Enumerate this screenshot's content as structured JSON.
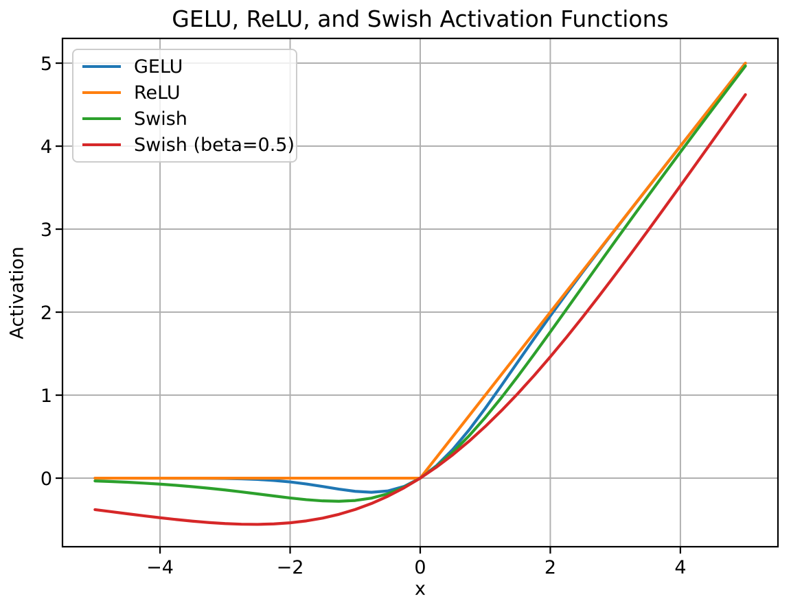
{
  "chart_data": {
    "type": "line",
    "title": "GELU, ReLU, and Swish Activation Functions",
    "xlabel": "x",
    "ylabel": "Activation",
    "xlim": [
      -5.5,
      5.5
    ],
    "ylim": [
      -0.826,
      5.298
    ],
    "grid": true,
    "grid_color": "#b0b0b0",
    "background": "#ffffff",
    "legend_position": "upper-left",
    "xticks": {
      "values": [
        -4,
        -2,
        0,
        2,
        4
      ],
      "labels": [
        "−4",
        "−2",
        "0",
        "2",
        "4"
      ]
    },
    "yticks": {
      "values": [
        0,
        1,
        2,
        3,
        4,
        5
      ],
      "labels": [
        "0",
        "1",
        "2",
        "3",
        "4",
        "5"
      ]
    },
    "x": [
      -5,
      -4.75,
      -4.5,
      -4.25,
      -4,
      -3.75,
      -3.5,
      -3.25,
      -3,
      -2.75,
      -2.5,
      -2.25,
      -2,
      -1.75,
      -1.5,
      -1.25,
      -1,
      -0.75,
      -0.5,
      -0.25,
      0,
      0.25,
      0.5,
      0.75,
      1,
      1.25,
      1.5,
      1.75,
      2,
      2.25,
      2.5,
      2.75,
      3,
      3.25,
      3.5,
      3.75,
      4,
      4.25,
      4.5,
      4.75,
      5
    ],
    "series": [
      {
        "name": "GELU",
        "color": "#1f77b4",
        "values": [
          0,
          0,
          0,
          0,
          -0.0001,
          -0.0003,
          -0.0008,
          -0.0019,
          -0.004,
          -0.0082,
          -0.0155,
          -0.0275,
          -0.0455,
          -0.0701,
          -0.1002,
          -0.1321,
          -0.1587,
          -0.17,
          -0.1543,
          -0.1003,
          0,
          0.1497,
          0.3457,
          0.58,
          0.8413,
          1.1179,
          1.3998,
          1.6799,
          1.9545,
          2.2225,
          2.4845,
          2.7418,
          2.996,
          3.2481,
          3.4992,
          3.7497,
          3.9999,
          4.25,
          4.5,
          4.75,
          5
        ]
      },
      {
        "name": "ReLU",
        "color": "#ff7f0e",
        "values": [
          0,
          0,
          0,
          0,
          0,
          0,
          0,
          0,
          0,
          0,
          0,
          0,
          0,
          0,
          0,
          0,
          0,
          0,
          0,
          0,
          0,
          0.25,
          0.5,
          0.75,
          1,
          1.25,
          1.5,
          1.75,
          2,
          2.25,
          2.5,
          2.75,
          3,
          3.25,
          3.5,
          3.75,
          4,
          4.25,
          4.5,
          4.75,
          5
        ]
      },
      {
        "name": "Swish",
        "color": "#2ca02c",
        "values": [
          -0.0335,
          -0.0407,
          -0.0494,
          -0.0598,
          -0.0719,
          -0.0862,
          -0.1026,
          -0.1213,
          -0.1423,
          -0.1652,
          -0.1896,
          -0.2145,
          -0.2384,
          -0.2591,
          -0.2736,
          -0.2784,
          -0.2689,
          -0.2406,
          -0.1888,
          -0.1095,
          0,
          0.1405,
          0.3112,
          0.5094,
          0.7311,
          0.9716,
          1.2264,
          1.4909,
          1.7616,
          2.0355,
          2.3104,
          2.5848,
          2.8577,
          3.1287,
          3.3974,
          3.6638,
          3.9281,
          4.1902,
          4.4506,
          4.7093,
          4.9665
        ]
      },
      {
        "name": "Swish (beta=0.5)",
        "color": "#d62728",
        "values": [
          -0.3793,
          -0.4042,
          -0.4291,
          -0.4534,
          -0.4768,
          -0.4986,
          -0.5182,
          -0.5347,
          -0.5473,
          -0.555,
          -0.5568,
          -0.5514,
          -0.5379,
          -0.5149,
          -0.4812,
          -0.4358,
          -0.3775,
          -0.3055,
          -0.2189,
          -0.1172,
          0,
          0.1328,
          0.2811,
          0.4445,
          0.6225,
          0.8142,
          1.0188,
          1.2351,
          1.4621,
          1.6986,
          1.9433,
          2.195,
          2.4527,
          2.7153,
          2.9818,
          3.2514,
          3.5232,
          3.7966,
          4.0709,
          4.3458,
          4.6207
        ]
      }
    ]
  }
}
